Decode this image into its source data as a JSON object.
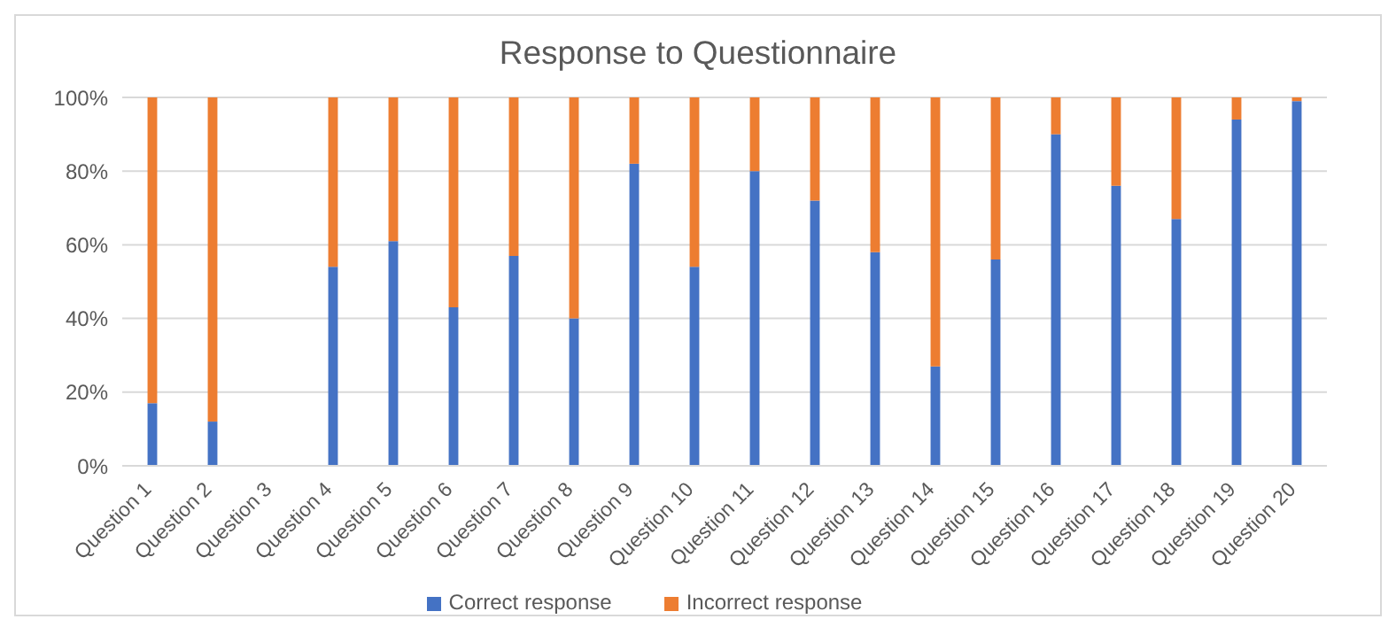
{
  "chart_data": {
    "type": "bar",
    "title": "Response to Questionnaire",
    "stacked": true,
    "categories": [
      "Question 1",
      "Question 2",
      "Question 3",
      "Question 4",
      "Question 5",
      "Question 6",
      "Question 7",
      "Question 8",
      "Question 9",
      "Question 10",
      "Question 11",
      "Question 12",
      "Question 13",
      "Question 14",
      "Question 15",
      "Question 16",
      "Question 17",
      "Question 18",
      "Question 19",
      "Question 20"
    ],
    "series": [
      {
        "name": "Correct response",
        "color": "#4472c4",
        "values": [
          17,
          12,
          null,
          54,
          61,
          43,
          57,
          40,
          82,
          54,
          80,
          72,
          58,
          27,
          56,
          90,
          76,
          67,
          94,
          99
        ]
      },
      {
        "name": "Incorrect response",
        "color": "#ed7d31",
        "values": [
          83,
          88,
          null,
          46,
          39,
          57,
          43,
          60,
          18,
          46,
          20,
          28,
          42,
          73,
          44,
          10,
          24,
          33,
          6,
          1
        ]
      }
    ],
    "ylim": [
      0,
      100
    ],
    "yticks": [
      {
        "value": 0,
        "label": "0%"
      },
      {
        "value": 20,
        "label": "20%"
      },
      {
        "value": 40,
        "label": "40%"
      },
      {
        "value": 60,
        "label": "60%"
      },
      {
        "value": 80,
        "label": "80%"
      },
      {
        "value": 100,
        "label": "100%"
      }
    ],
    "grid": "y",
    "legend": "bottom"
  }
}
